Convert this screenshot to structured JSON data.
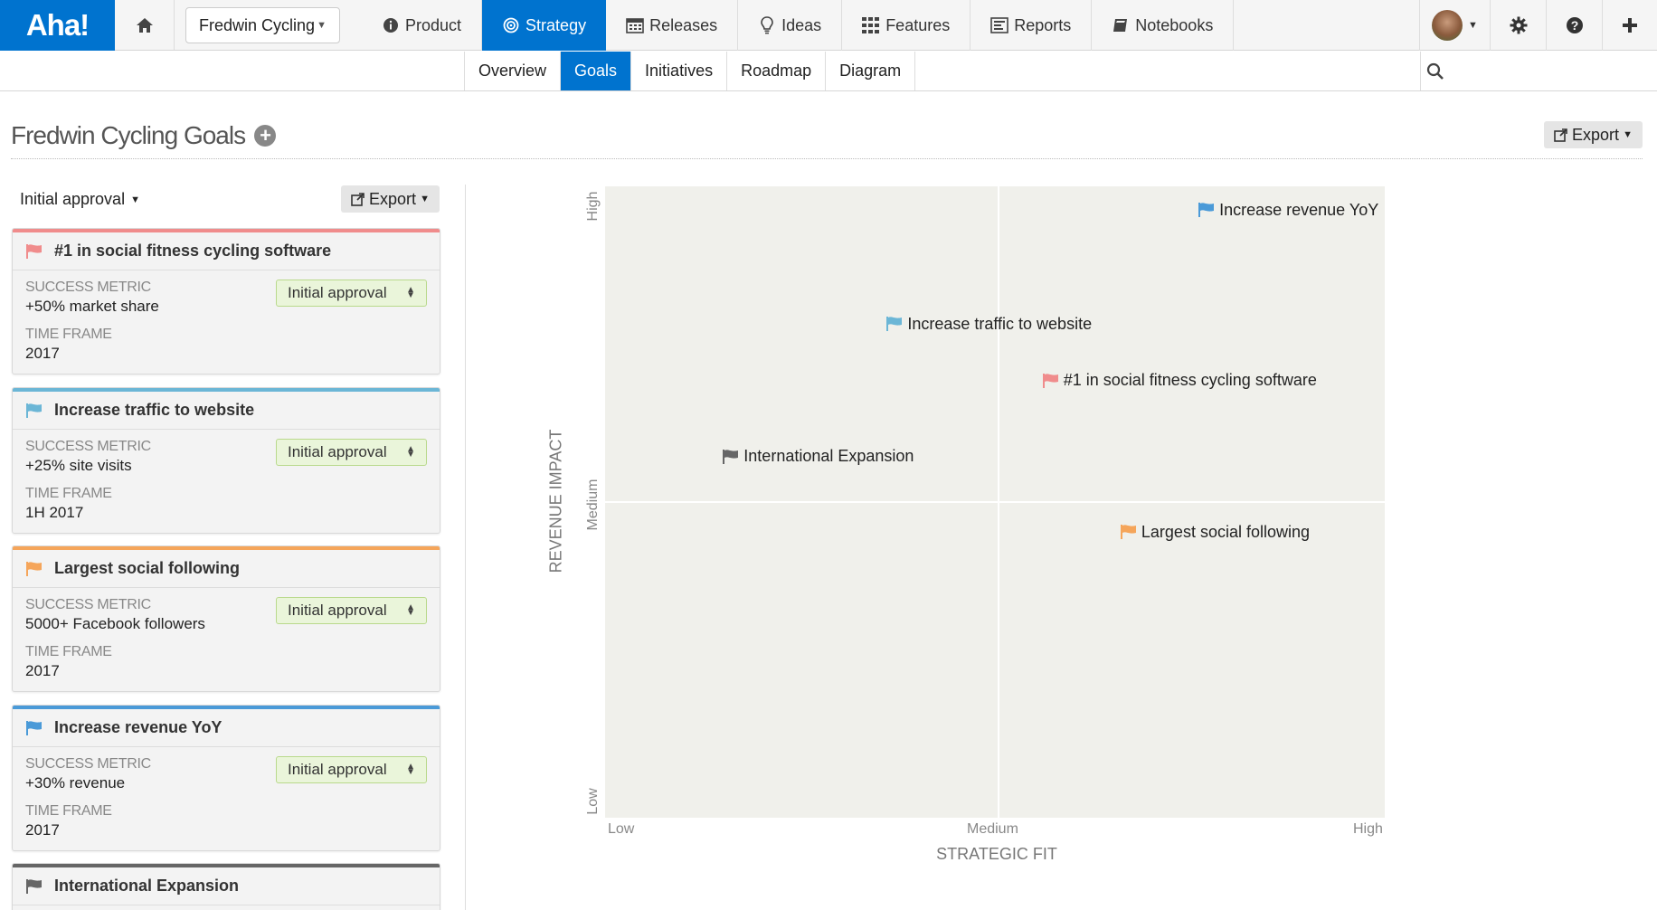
{
  "app": {
    "logo": "Aha!"
  },
  "nav": {
    "workspace": "Fredwin Cycling",
    "items": [
      {
        "label": "Product",
        "icon": "info-icon"
      },
      {
        "label": "Strategy",
        "icon": "target-icon",
        "active": true
      },
      {
        "label": "Releases",
        "icon": "calendar-icon"
      },
      {
        "label": "Ideas",
        "icon": "lightbulb-icon"
      },
      {
        "label": "Features",
        "icon": "grid-icon"
      },
      {
        "label": "Reports",
        "icon": "report-icon"
      },
      {
        "label": "Notebooks",
        "icon": "notebook-icon"
      }
    ]
  },
  "subnav": {
    "tabs": [
      {
        "label": "Overview"
      },
      {
        "label": "Goals",
        "active": true
      },
      {
        "label": "Initiatives"
      },
      {
        "label": "Roadmap"
      },
      {
        "label": "Diagram"
      }
    ]
  },
  "page": {
    "title": "Fredwin Cycling Goals",
    "export_label": "Export"
  },
  "left": {
    "filter_label": "Initial approval",
    "export_label": "Export",
    "metric_label": "SUCCESS METRIC",
    "timeframe_label": "TIME FRAME",
    "cards": [
      {
        "name": "#1 in social fitness cycling software",
        "color": "#f08c8c",
        "metric": "+50% market share",
        "timeframe": "2017",
        "status": "Initial approval"
      },
      {
        "name": "Increase traffic to website",
        "color": "#6bb6d6",
        "metric": "+25% site visits",
        "timeframe": "1H 2017",
        "status": "Initial approval"
      },
      {
        "name": "Largest social following",
        "color": "#f5a55a",
        "metric": "5000+ Facebook followers",
        "timeframe": "2017",
        "status": "Initial approval"
      },
      {
        "name": "Increase revenue YoY",
        "color": "#4a9ad8",
        "metric": "+30% revenue",
        "timeframe": "2017",
        "status": "Initial approval"
      },
      {
        "name": "International Expansion",
        "color": "#666666"
      }
    ]
  },
  "chart": {
    "y_title": "REVENUE IMPACT",
    "x_title": "STRATEGIC FIT",
    "y_ticks": [
      "High",
      "Medium",
      "Low"
    ],
    "x_ticks": [
      "Low",
      "Medium",
      "High"
    ]
  },
  "chart_data": {
    "type": "scatter",
    "xlabel": "STRATEGIC FIT",
    "ylabel": "REVENUE IMPACT",
    "xlim": [
      0,
      1
    ],
    "ylim": [
      0,
      1
    ],
    "x_tick_labels": [
      "Low",
      "Medium",
      "High"
    ],
    "y_tick_labels": [
      "Low",
      "Medium",
      "High"
    ],
    "points": [
      {
        "label": "Increase revenue YoY",
        "x": 0.76,
        "y": 0.96,
        "color": "#4a9ad8"
      },
      {
        "label": "Increase traffic to website",
        "x": 0.36,
        "y": 0.78,
        "color": "#6bb6d6"
      },
      {
        "label": "#1 in social fitness cycling software",
        "x": 0.56,
        "y": 0.69,
        "color": "#f08c8c"
      },
      {
        "label": "International Expansion",
        "x": 0.15,
        "y": 0.57,
        "color": "#666666"
      },
      {
        "label": "Largest social following",
        "x": 0.66,
        "y": 0.45,
        "color": "#f5a55a"
      }
    ]
  }
}
